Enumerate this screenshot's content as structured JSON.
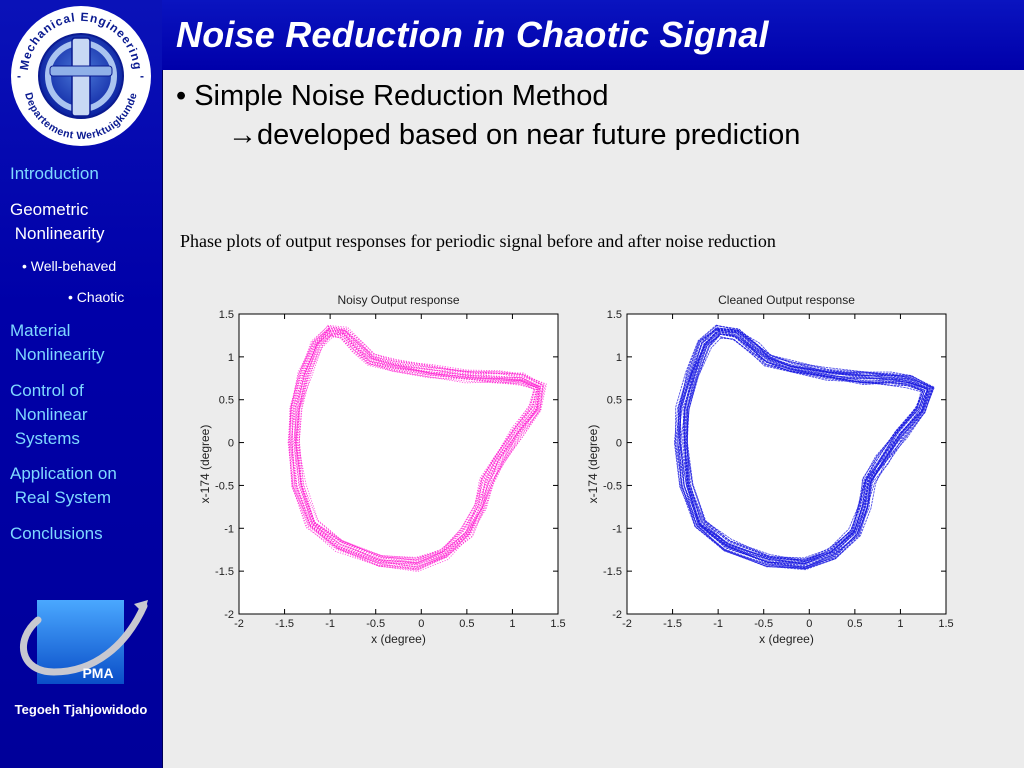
{
  "slide": {
    "title": "Noise Reduction in Chaotic Signal",
    "bullet": "Simple Noise Reduction Method",
    "bullet_marker": "•",
    "sub_bullet_arrow": "→",
    "sub_bullet": "developed based on near future prediction",
    "caption": "Phase plots of output responses for periodic signal before and after noise reduction"
  },
  "logo": {
    "top_text": "Mechanical Engineering",
    "bottom_text": "Departement Werktuigkunde",
    "separator": "-"
  },
  "sidebar": {
    "items": [
      {
        "label": "Introduction"
      },
      {
        "label": "Geometric\n Nonlinearity"
      },
      {
        "label": "• Well-behaved"
      },
      {
        "label": "• Chaotic"
      },
      {
        "label": "Material\n Nonlinearity"
      },
      {
        "label": "Control of\n Nonlinear\n Systems"
      },
      {
        "label": "Application on\n Real System"
      },
      {
        "label": "Conclusions"
      }
    ],
    "pma_label": "PMA",
    "author": "Tegoeh Tjahjowidodo"
  },
  "chart_data": [
    {
      "type": "scatter",
      "title": "Noisy Output response",
      "xlabel": "x (degree)",
      "ylabel": "x-174 (degree)",
      "xlim": [
        -2,
        1.5
      ],
      "ylim": [
        -2,
        1.5
      ],
      "xticks": [
        "-2",
        "-1.5",
        "-1",
        "-0.5",
        "0",
        "0.5",
        "1",
        "1.5"
      ],
      "yticks": [
        "1.5",
        "1",
        "0.5",
        "0",
        "-0.5",
        "-1",
        "-1.5",
        "-2"
      ],
      "color": "#ff1cd2",
      "band_width": 0.13,
      "loop": [
        [
          -1.0,
          1.3
        ],
        [
          -0.85,
          1.28
        ],
        [
          -0.7,
          1.12
        ],
        [
          -0.55,
          0.97
        ],
        [
          -0.3,
          0.9
        ],
        [
          0.1,
          0.83
        ],
        [
          0.5,
          0.78
        ],
        [
          0.85,
          0.76
        ],
        [
          1.1,
          0.74
        ],
        [
          1.3,
          0.65
        ],
        [
          1.25,
          0.4
        ],
        [
          1.05,
          0.12
        ],
        [
          0.85,
          -0.2
        ],
        [
          0.72,
          -0.45
        ],
        [
          0.65,
          -0.75
        ],
        [
          0.5,
          -1.05
        ],
        [
          0.25,
          -1.3
        ],
        [
          -0.05,
          -1.42
        ],
        [
          -0.45,
          -1.38
        ],
        [
          -0.9,
          -1.2
        ],
        [
          -1.2,
          -0.95
        ],
        [
          -1.35,
          -0.5
        ],
        [
          -1.4,
          0.0
        ],
        [
          -1.38,
          0.4
        ],
        [
          -1.28,
          0.8
        ],
        [
          -1.15,
          1.15
        ]
      ]
    },
    {
      "type": "scatter",
      "title": "Cleaned Output response",
      "xlabel": "x (degree)",
      "ylabel": "x-174 (degree)",
      "xlim": [
        -2,
        1.5
      ],
      "ylim": [
        -2,
        1.5
      ],
      "xticks": [
        "-2",
        "-1.5",
        "-1",
        "-0.5",
        "0",
        "0.5",
        "1",
        "1.5"
      ],
      "yticks": [
        "1.5",
        "1",
        "0.5",
        "0",
        "-0.5",
        "-1",
        "-1.5",
        "-2"
      ],
      "color": "#1818e0",
      "band_width": 0.13,
      "loop": [
        [
          -1.0,
          1.3
        ],
        [
          -0.8,
          1.27
        ],
        [
          -0.6,
          1.1
        ],
        [
          -0.45,
          0.97
        ],
        [
          -0.2,
          0.88
        ],
        [
          0.2,
          0.8
        ],
        [
          0.6,
          0.75
        ],
        [
          0.9,
          0.75
        ],
        [
          1.1,
          0.72
        ],
        [
          1.3,
          0.62
        ],
        [
          1.22,
          0.38
        ],
        [
          1.0,
          0.1
        ],
        [
          0.8,
          -0.2
        ],
        [
          0.65,
          -0.45
        ],
        [
          0.6,
          -0.75
        ],
        [
          0.5,
          -1.05
        ],
        [
          0.25,
          -1.3
        ],
        [
          -0.05,
          -1.42
        ],
        [
          -0.45,
          -1.38
        ],
        [
          -0.9,
          -1.2
        ],
        [
          -1.2,
          -0.95
        ],
        [
          -1.35,
          -0.5
        ],
        [
          -1.4,
          0.0
        ],
        [
          -1.38,
          0.4
        ],
        [
          -1.28,
          0.8
        ],
        [
          -1.15,
          1.15
        ]
      ]
    }
  ]
}
